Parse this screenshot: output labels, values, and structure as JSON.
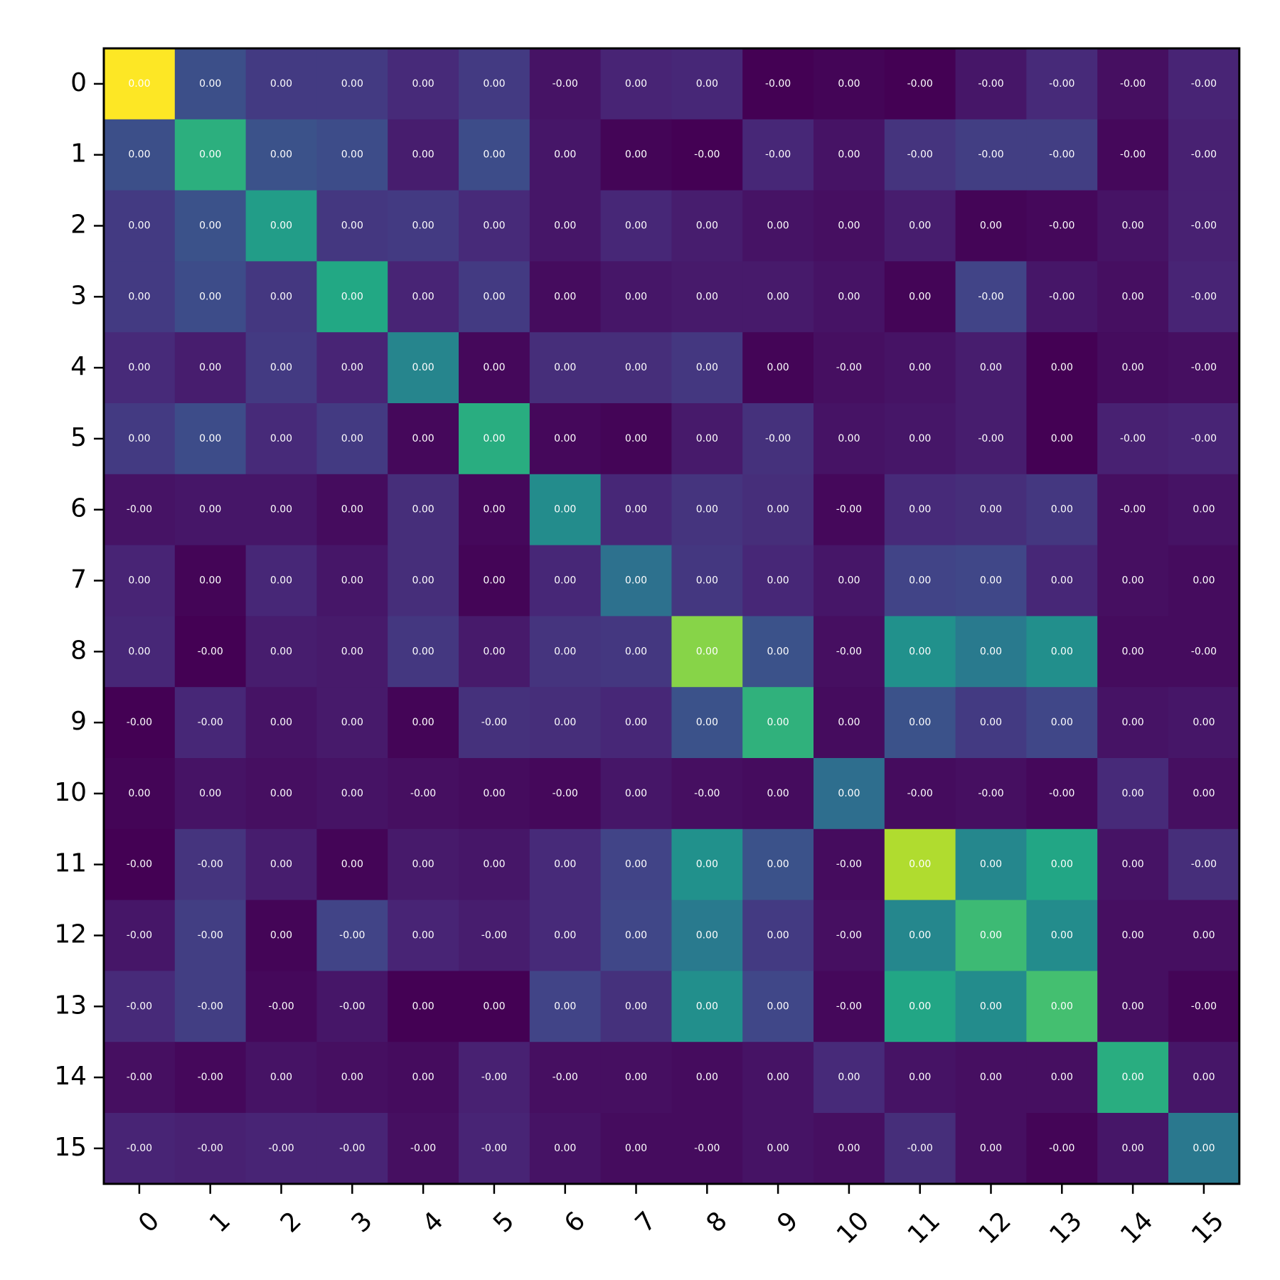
{
  "chart_data": {
    "type": "heatmap",
    "title": "",
    "xlabel": "",
    "ylabel": "",
    "colormap": "viridis",
    "x_ticks": [
      "0",
      "1",
      "2",
      "3",
      "4",
      "5",
      "6",
      "7",
      "8",
      "9",
      "10",
      "11",
      "12",
      "13",
      "14",
      "15"
    ],
    "y_ticks": [
      "0",
      "1",
      "2",
      "3",
      "4",
      "5",
      "6",
      "7",
      "8",
      "9",
      "10",
      "11",
      "12",
      "13",
      "14",
      "15"
    ],
    "color_intensity": [
      [
        1.0,
        0.24,
        0.17,
        0.17,
        0.12,
        0.17,
        0.05,
        0.1,
        0.11,
        0.0,
        0.01,
        0.0,
        0.06,
        0.12,
        0.04,
        0.1
      ],
      [
        0.24,
        0.63,
        0.25,
        0.23,
        0.08,
        0.23,
        0.06,
        0.01,
        0.0,
        0.11,
        0.05,
        0.15,
        0.18,
        0.18,
        0.02,
        0.09
      ],
      [
        0.17,
        0.25,
        0.55,
        0.16,
        0.17,
        0.12,
        0.06,
        0.11,
        0.08,
        0.05,
        0.04,
        0.08,
        0.01,
        0.02,
        0.05,
        0.09
      ],
      [
        0.17,
        0.23,
        0.16,
        0.6,
        0.1,
        0.17,
        0.03,
        0.06,
        0.07,
        0.07,
        0.05,
        0.01,
        0.2,
        0.06,
        0.04,
        0.1
      ],
      [
        0.12,
        0.08,
        0.17,
        0.1,
        0.45,
        0.02,
        0.13,
        0.13,
        0.16,
        0.01,
        0.04,
        0.05,
        0.08,
        0.0,
        0.03,
        0.04
      ],
      [
        0.17,
        0.23,
        0.12,
        0.17,
        0.02,
        0.62,
        0.02,
        0.01,
        0.07,
        0.14,
        0.05,
        0.06,
        0.08,
        0.0,
        0.09,
        0.1
      ],
      [
        0.05,
        0.06,
        0.06,
        0.03,
        0.13,
        0.02,
        0.48,
        0.11,
        0.15,
        0.13,
        0.02,
        0.12,
        0.13,
        0.16,
        0.04,
        0.05
      ],
      [
        0.1,
        0.01,
        0.11,
        0.06,
        0.13,
        0.01,
        0.11,
        0.37,
        0.16,
        0.11,
        0.06,
        0.2,
        0.21,
        0.11,
        0.04,
        0.03
      ],
      [
        0.11,
        0.0,
        0.08,
        0.07,
        0.16,
        0.07,
        0.15,
        0.16,
        0.82,
        0.25,
        0.04,
        0.5,
        0.41,
        0.49,
        0.03,
        0.03
      ],
      [
        0.0,
        0.11,
        0.05,
        0.07,
        0.01,
        0.14,
        0.13,
        0.11,
        0.25,
        0.64,
        0.03,
        0.25,
        0.17,
        0.21,
        0.05,
        0.06
      ],
      [
        0.01,
        0.05,
        0.04,
        0.05,
        0.04,
        0.03,
        0.02,
        0.06,
        0.04,
        0.03,
        0.36,
        0.03,
        0.04,
        0.02,
        0.12,
        0.04
      ],
      [
        0.0,
        0.15,
        0.08,
        0.01,
        0.07,
        0.06,
        0.12,
        0.2,
        0.5,
        0.25,
        0.03,
        0.88,
        0.46,
        0.59,
        0.05,
        0.13
      ],
      [
        0.06,
        0.18,
        0.01,
        0.2,
        0.1,
        0.08,
        0.12,
        0.21,
        0.41,
        0.17,
        0.04,
        0.46,
        0.68,
        0.48,
        0.04,
        0.04
      ],
      [
        0.12,
        0.18,
        0.02,
        0.06,
        0.0,
        0.0,
        0.2,
        0.14,
        0.49,
        0.21,
        0.02,
        0.59,
        0.48,
        0.7,
        0.04,
        0.01
      ],
      [
        0.04,
        0.02,
        0.05,
        0.04,
        0.03,
        0.09,
        0.04,
        0.04,
        0.03,
        0.05,
        0.12,
        0.05,
        0.04,
        0.04,
        0.62,
        0.06
      ],
      [
        0.1,
        0.09,
        0.1,
        0.1,
        0.04,
        0.1,
        0.05,
        0.03,
        0.03,
        0.05,
        0.04,
        0.13,
        0.04,
        0.01,
        0.06,
        0.4
      ]
    ],
    "cell_labels": [
      [
        "0.00",
        "0.00",
        "0.00",
        "0.00",
        "0.00",
        "0.00",
        "-0.00",
        "0.00",
        "0.00",
        "-0.00",
        "0.00",
        "-0.00",
        "-0.00",
        "-0.00",
        "-0.00",
        "-0.00"
      ],
      [
        "0.00",
        "0.00",
        "0.00",
        "0.00",
        "0.00",
        "0.00",
        "0.00",
        "0.00",
        "-0.00",
        "-0.00",
        "0.00",
        "-0.00",
        "-0.00",
        "-0.00",
        "-0.00",
        "-0.00"
      ],
      [
        "0.00",
        "0.00",
        "0.00",
        "0.00",
        "0.00",
        "0.00",
        "0.00",
        "0.00",
        "0.00",
        "0.00",
        "0.00",
        "0.00",
        "0.00",
        "-0.00",
        "0.00",
        "-0.00"
      ],
      [
        "0.00",
        "0.00",
        "0.00",
        "0.00",
        "0.00",
        "0.00",
        "0.00",
        "0.00",
        "0.00",
        "0.00",
        "0.00",
        "0.00",
        "-0.00",
        "-0.00",
        "0.00",
        "-0.00"
      ],
      [
        "0.00",
        "0.00",
        "0.00",
        "0.00",
        "0.00",
        "0.00",
        "0.00",
        "0.00",
        "0.00",
        "0.00",
        "-0.00",
        "0.00",
        "0.00",
        "0.00",
        "0.00",
        "-0.00"
      ],
      [
        "0.00",
        "0.00",
        "0.00",
        "0.00",
        "0.00",
        "0.00",
        "0.00",
        "0.00",
        "0.00",
        "-0.00",
        "0.00",
        "0.00",
        "-0.00",
        "0.00",
        "-0.00",
        "-0.00"
      ],
      [
        "-0.00",
        "0.00",
        "0.00",
        "0.00",
        "0.00",
        "0.00",
        "0.00",
        "0.00",
        "0.00",
        "0.00",
        "-0.00",
        "0.00",
        "0.00",
        "0.00",
        "-0.00",
        "0.00"
      ],
      [
        "0.00",
        "0.00",
        "0.00",
        "0.00",
        "0.00",
        "0.00",
        "0.00",
        "0.00",
        "0.00",
        "0.00",
        "0.00",
        "0.00",
        "0.00",
        "0.00",
        "0.00",
        "0.00"
      ],
      [
        "0.00",
        "-0.00",
        "0.00",
        "0.00",
        "0.00",
        "0.00",
        "0.00",
        "0.00",
        "0.00",
        "0.00",
        "-0.00",
        "0.00",
        "0.00",
        "0.00",
        "0.00",
        "-0.00"
      ],
      [
        "-0.00",
        "-0.00",
        "0.00",
        "0.00",
        "0.00",
        "-0.00",
        "0.00",
        "0.00",
        "0.00",
        "0.00",
        "0.00",
        "0.00",
        "0.00",
        "0.00",
        "0.00",
        "0.00"
      ],
      [
        "0.00",
        "0.00",
        "0.00",
        "0.00",
        "-0.00",
        "0.00",
        "-0.00",
        "0.00",
        "-0.00",
        "0.00",
        "0.00",
        "-0.00",
        "-0.00",
        "-0.00",
        "0.00",
        "0.00"
      ],
      [
        "-0.00",
        "-0.00",
        "0.00",
        "0.00",
        "0.00",
        "0.00",
        "0.00",
        "0.00",
        "0.00",
        "0.00",
        "-0.00",
        "0.00",
        "0.00",
        "0.00",
        "0.00",
        "-0.00"
      ],
      [
        "-0.00",
        "-0.00",
        "0.00",
        "-0.00",
        "0.00",
        "-0.00",
        "0.00",
        "0.00",
        "0.00",
        "0.00",
        "-0.00",
        "0.00",
        "0.00",
        "0.00",
        "0.00",
        "0.00"
      ],
      [
        "-0.00",
        "-0.00",
        "-0.00",
        "-0.00",
        "0.00",
        "0.00",
        "0.00",
        "0.00",
        "0.00",
        "0.00",
        "-0.00",
        "0.00",
        "0.00",
        "0.00",
        "0.00",
        "-0.00"
      ],
      [
        "-0.00",
        "-0.00",
        "0.00",
        "0.00",
        "0.00",
        "-0.00",
        "-0.00",
        "0.00",
        "0.00",
        "0.00",
        "0.00",
        "0.00",
        "0.00",
        "0.00",
        "0.00",
        "0.00"
      ],
      [
        "-0.00",
        "-0.00",
        "-0.00",
        "-0.00",
        "-0.00",
        "-0.00",
        "0.00",
        "0.00",
        "-0.00",
        "0.00",
        "0.00",
        "-0.00",
        "0.00",
        "-0.00",
        "0.00",
        "0.00"
      ]
    ],
    "grid": false,
    "legend": "none"
  }
}
